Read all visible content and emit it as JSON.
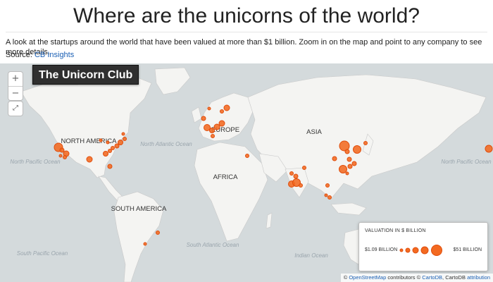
{
  "header": {
    "title": "Where are the unicorns of the world?",
    "description": "A look at the startups around the world that have been valued at more than $1 billion. Zoom in on the map and point to any company to see more details.",
    "source_prefix": "Source:",
    "source_link": "CB Insights"
  },
  "map": {
    "badge": "The Unicorn Club",
    "zoom_in": "+",
    "zoom_out": "−",
    "fullscreen": "⤢",
    "continent_labels": [
      "NORTH AMERICA",
      "EUROPE",
      "ASIA",
      "AFRICA",
      "SOUTH AMERICA"
    ],
    "ocean_labels": [
      "North Atlantic Ocean",
      "North Pacific Ocean",
      "North Pacific Ocean",
      "South Pacific Ocean",
      "South Atlantic Ocean",
      "Indian Ocean"
    ],
    "colors": {
      "water": "#d4dadc",
      "land": "#f4f4f2",
      "marker_fill": "#f36a21",
      "marker_stroke": "#e04d0c"
    }
  },
  "legend": {
    "title": "VALUATION IN $ BILLION",
    "min_label": "$1.09 BILLION",
    "max_label": "$51 BILLION"
  },
  "attribution": {
    "prefix": "©",
    "osm": "OpenStreetMap",
    "contributors": "contributors ©",
    "carto": "CartoDB",
    "carto_suffix": ", CartoDB",
    "attr_link": "attribution"
  }
}
